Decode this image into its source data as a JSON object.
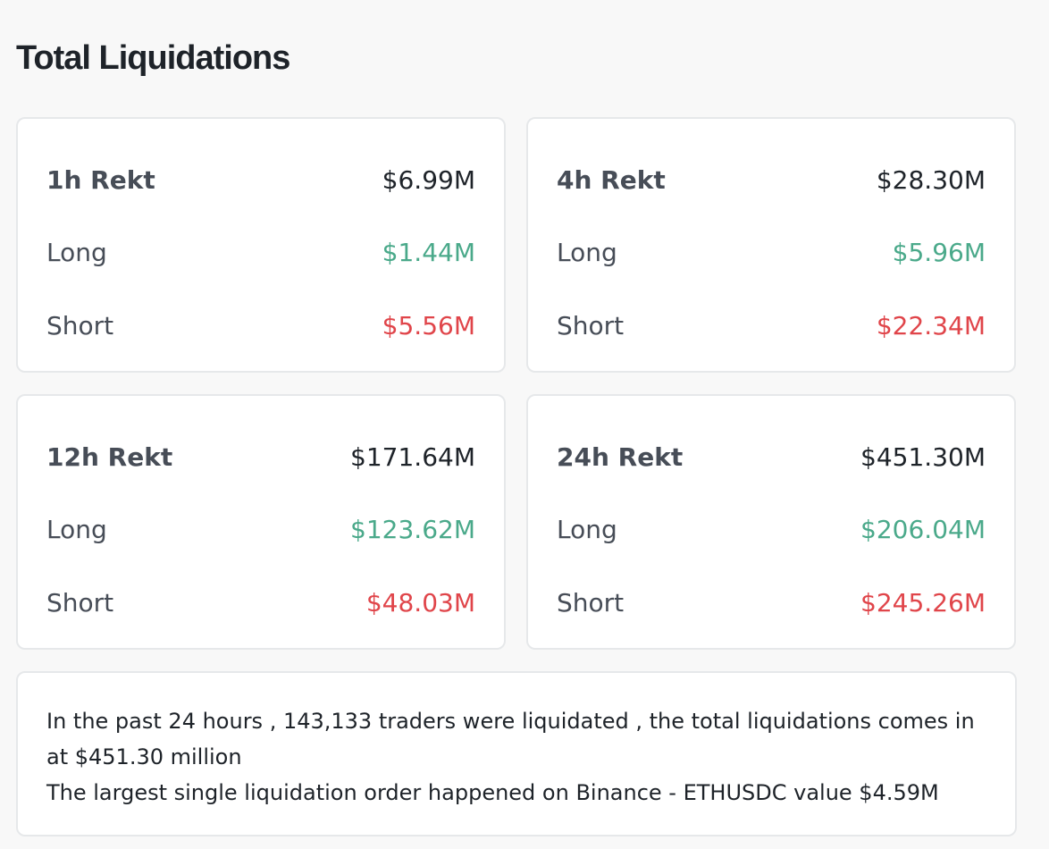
{
  "page": {
    "title": "Total Liquidations"
  },
  "colors": {
    "long": "#4aa98a",
    "short": "#e0454a",
    "label": "#474d57",
    "heading": "#1e2329",
    "card_border": "#e6e8ea",
    "background": "#f8f8f8"
  },
  "cards": [
    {
      "title": "1h Rekt",
      "total": "$6.99M",
      "long_label": "Long",
      "long_value": "$1.44M",
      "short_label": "Short",
      "short_value": "$5.56M"
    },
    {
      "title": "4h Rekt",
      "total": "$28.30M",
      "long_label": "Long",
      "long_value": "$5.96M",
      "short_label": "Short",
      "short_value": "$22.34M"
    },
    {
      "title": "12h Rekt",
      "total": "$171.64M",
      "long_label": "Long",
      "long_value": "$123.62M",
      "short_label": "Short",
      "short_value": "$48.03M"
    },
    {
      "title": "24h Rekt",
      "total": "$451.30M",
      "long_label": "Long",
      "long_value": "$206.04M",
      "short_label": "Short",
      "short_value": "$245.26M"
    }
  ],
  "summary": {
    "line1": "In the past 24 hours , 143,133 traders were liquidated , the total liquidations comes in at $451.30 million",
    "line2": "The largest single liquidation order happened on Binance - ETHUSDC value $4.59M"
  }
}
